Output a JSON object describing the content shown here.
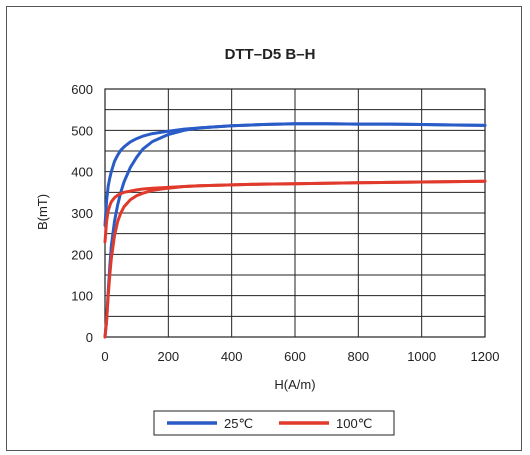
{
  "chart_data": {
    "type": "line",
    "title": "DTT–D5    B–H",
    "xlabel": "H(A/m)",
    "ylabel": "B(mT)",
    "xlim": [
      0,
      1200
    ],
    "ylim": [
      0,
      600
    ],
    "xticks": [
      0,
      200,
      400,
      600,
      800,
      1000,
      1200
    ],
    "yticks": [
      0,
      100,
      200,
      300,
      400,
      500,
      600
    ],
    "grid": true,
    "legend_position": "bottom-center",
    "series": [
      {
        "name": "25℃",
        "color": "#2a5cc7",
        "x": [
          0,
          5,
          10,
          15,
          20,
          30,
          40,
          50,
          60,
          80,
          100,
          120,
          150,
          200,
          250,
          300,
          400,
          500,
          600,
          700,
          800,
          900,
          1000,
          1100,
          1200
        ],
        "y_lower": [
          0,
          40,
          110,
          170,
          220,
          280,
          320,
          350,
          375,
          410,
          435,
          455,
          473,
          490,
          500,
          506,
          511,
          514,
          516,
          516,
          515,
          515,
          514,
          513,
          512
        ],
        "y_upper": [
          270,
          330,
          365,
          385,
          400,
          425,
          440,
          452,
          460,
          472,
          480,
          486,
          492,
          498,
          503,
          506,
          511,
          514,
          516,
          516,
          515,
          515,
          514,
          513,
          512
        ]
      },
      {
        "name": "100℃",
        "color": "#e03a2c",
        "x": [
          0,
          5,
          10,
          15,
          20,
          30,
          40,
          50,
          60,
          80,
          100,
          120,
          150,
          200,
          250,
          300,
          400,
          500,
          600,
          700,
          800,
          900,
          1000,
          1100,
          1200
        ],
        "y_lower": [
          0,
          40,
          100,
          150,
          190,
          245,
          280,
          300,
          315,
          332,
          342,
          348,
          355,
          360,
          364,
          366,
          368,
          370,
          371,
          372,
          373,
          374,
          375,
          376,
          377
        ],
        "y_upper": [
          230,
          280,
          305,
          318,
          327,
          337,
          343,
          347,
          350,
          353,
          356,
          358,
          360,
          362,
          364,
          366,
          368,
          370,
          371,
          372,
          373,
          374,
          375,
          376,
          377
        ]
      }
    ]
  }
}
